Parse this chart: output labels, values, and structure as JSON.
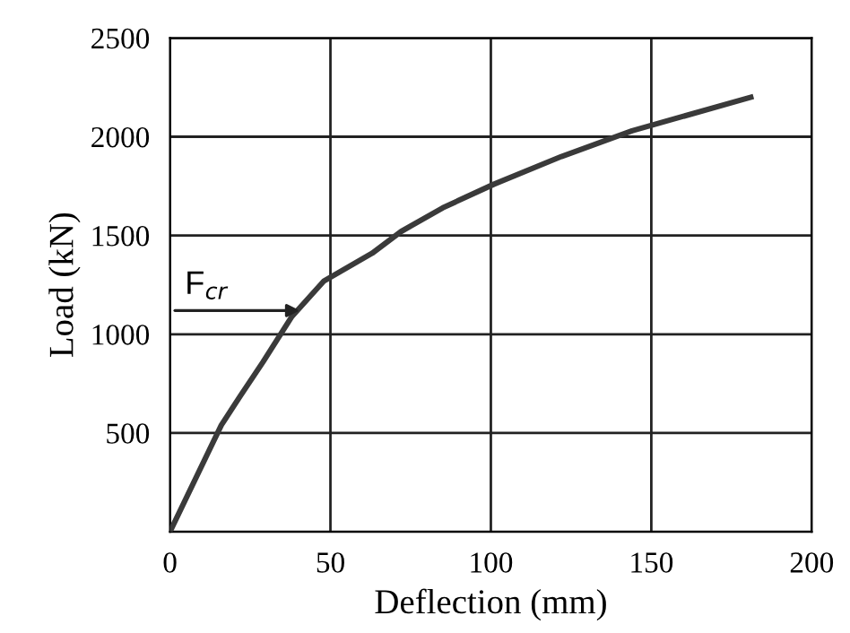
{
  "chart_data": {
    "type": "line",
    "xlabel": "Deflection (mm)",
    "ylabel": "Load (kN)",
    "x": [
      0,
      16,
      22,
      29,
      38,
      48,
      63,
      72,
      85,
      101,
      122,
      144,
      181
    ],
    "series": [
      {
        "color": "#3a3a3a",
        "values": [
          0,
          540,
          690,
          860,
          1090,
          1270,
          1410,
          1520,
          1640,
          1760,
          1900,
          2030,
          2200
        ]
      }
    ],
    "xlim": [
      0,
      200
    ],
    "ylim": [
      0,
      2500
    ],
    "xticks": [
      0,
      50,
      100,
      150,
      200
    ],
    "yticks": [
      {
        "value": 0,
        "label": null
      },
      500,
      1000,
      1500,
      2000,
      2500
    ],
    "annotations": [
      {
        "text": "F$_{cr}$",
        "x": 42,
        "y": 1120
      }
    ],
    "grid": true,
    "marker": "none",
    "line_style": "solid"
  }
}
